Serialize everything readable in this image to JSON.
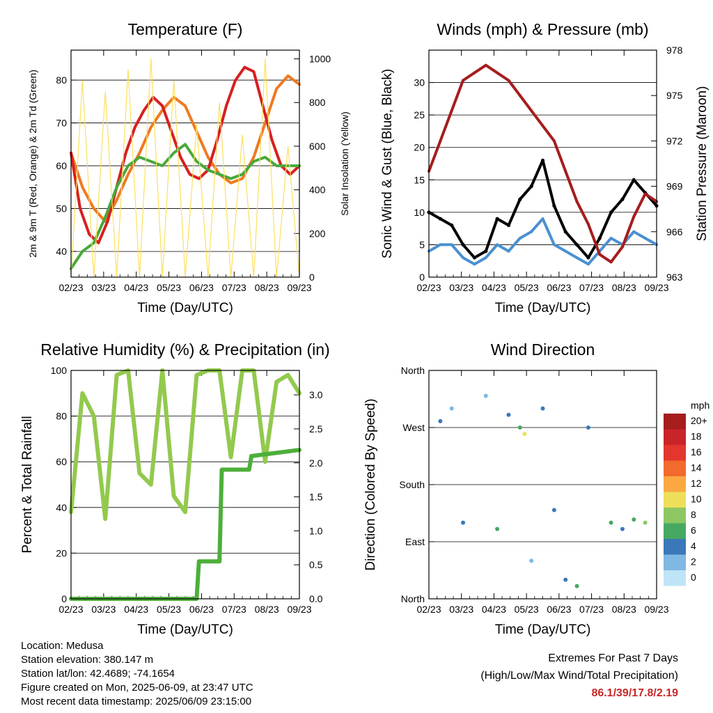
{
  "footer": {
    "location": "Location: Medusa",
    "elevation": "Station elevation: 380.147 m",
    "latlon": "Station lat/lon: 42.4689; -74.1654",
    "created": "Figure created on Mon, 2025-06-09, at 23:47 UTC",
    "recent": "Most recent data timestamp: 2025/06/09 23:15:00",
    "extremes_title": "Extremes For Past 7 Days",
    "extremes_sub": "(High/Low/Max Wind/Total Precipitation)",
    "extremes_values": "86.1/39/17.8/2.19"
  },
  "chart_data": [
    {
      "type": "line",
      "title": "Temperature (F)",
      "xlabel": "Time (Day/UTC)",
      "ylabel": "2m & 9m T (Red, Orange) & 2m Td (Green)",
      "ylabel_right": "Solar Insolation (Yellow)",
      "x_ticks": [
        "02/23",
        "03/23",
        "04/23",
        "05/23",
        "06/23",
        "07/23",
        "08/23",
        "09/23"
      ],
      "xlim": [
        0,
        7
      ],
      "ylim": [
        34,
        87
      ],
      "y_ticks": [
        40,
        50,
        60,
        70,
        80
      ],
      "ylim_right": [
        0,
        1040
      ],
      "y_ticks_right": [
        0,
        200,
        400,
        600,
        800,
        1000
      ],
      "grid": "horizontal",
      "series": [
        {
          "color": "#ee7a22",
          "axis": "left",
          "x": [
            0,
            0.05,
            0.1,
            0.15,
            0.2,
            0.25,
            0.3,
            0.35,
            0.4,
            0.45,
            0.5,
            0.55,
            0.6,
            0.65,
            0.7,
            0.75,
            0.8,
            0.85,
            0.9,
            0.95,
            1.0
          ],
          "y": [
            63,
            55,
            50,
            47,
            52,
            58,
            63,
            69,
            73,
            76,
            74,
            68,
            62,
            58,
            56,
            57,
            62,
            70,
            78,
            81,
            79
          ]
        },
        {
          "color": "#d62020",
          "axis": "left",
          "x": [
            0,
            0.04,
            0.08,
            0.12,
            0.16,
            0.2,
            0.24,
            0.28,
            0.32,
            0.36,
            0.4,
            0.44,
            0.48,
            0.52,
            0.56,
            0.6,
            0.64,
            0.68,
            0.72,
            0.76,
            0.8,
            0.84,
            0.88,
            0.92,
            0.96,
            1.0
          ],
          "y": [
            63,
            50,
            44,
            42,
            47,
            55,
            63,
            69,
            73,
            76,
            74,
            68,
            62,
            58,
            57,
            59,
            66,
            74,
            80,
            83,
            82,
            74,
            66,
            60,
            58,
            60
          ]
        },
        {
          "color": "#49a83a",
          "axis": "left",
          "x": [
            0,
            0.05,
            0.1,
            0.15,
            0.2,
            0.25,
            0.3,
            0.35,
            0.4,
            0.45,
            0.5,
            0.55,
            0.6,
            0.65,
            0.7,
            0.75,
            0.8,
            0.85,
            0.9,
            0.95,
            1.0
          ],
          "y": [
            36,
            40,
            42,
            48,
            55,
            60,
            62,
            61,
            60,
            63,
            65,
            61,
            59,
            58,
            57,
            58,
            61,
            62,
            60,
            60,
            60
          ]
        },
        {
          "color": "#fde05c",
          "axis": "right",
          "x": [
            0,
            0.05,
            0.1,
            0.15,
            0.2,
            0.25,
            0.3,
            0.35,
            0.4,
            0.45,
            0.5,
            0.55,
            0.6,
            0.65,
            0.7,
            0.75,
            0.8,
            0.85,
            0.9,
            0.95,
            1.0
          ],
          "y": [
            0,
            900,
            0,
            850,
            0,
            950,
            0,
            1000,
            0,
            900,
            0,
            700,
            0,
            800,
            0,
            650,
            0,
            1000,
            0,
            600,
            0
          ]
        }
      ]
    },
    {
      "type": "scatter",
      "title": "Winds (mph) & Pressure (mb)",
      "xlabel": "Time (Day/UTC)",
      "ylabel": "Sonic Wind & Gust (Blue, Black)",
      "ylabel_right": "Station Pressure (Maroon)",
      "x_ticks": [
        "02/23",
        "03/23",
        "04/23",
        "05/23",
        "06/23",
        "07/23",
        "08/23",
        "09/23"
      ],
      "xlim": [
        0,
        7
      ],
      "ylim": [
        0,
        35
      ],
      "y_ticks": [
        0,
        5,
        10,
        15,
        20,
        25,
        30
      ],
      "ylim_right": [
        963,
        978
      ],
      "y_ticks_right": [
        963,
        966,
        969,
        972,
        975,
        978
      ],
      "grid": "horizontal",
      "series": [
        {
          "color": "#4a90d0",
          "axis": "left",
          "x": [
            0,
            0.05,
            0.1,
            0.15,
            0.2,
            0.25,
            0.3,
            0.35,
            0.4,
            0.45,
            0.5,
            0.55,
            0.6,
            0.65,
            0.7,
            0.75,
            0.8,
            0.85,
            0.9,
            0.95,
            1.0
          ],
          "y": [
            4,
            5,
            5,
            3,
            2,
            3,
            5,
            4,
            6,
            7,
            9,
            5,
            4,
            3,
            2,
            4,
            6,
            5,
            7,
            6,
            5
          ]
        },
        {
          "color": "#000000",
          "axis": "left",
          "x": [
            0,
            0.05,
            0.1,
            0.15,
            0.2,
            0.25,
            0.3,
            0.35,
            0.4,
            0.45,
            0.5,
            0.55,
            0.6,
            0.65,
            0.7,
            0.75,
            0.8,
            0.85,
            0.9,
            0.95,
            1.0
          ],
          "y": [
            10,
            9,
            8,
            5,
            3,
            4,
            9,
            8,
            12,
            14,
            18,
            11,
            7,
            5,
            3,
            6,
            10,
            12,
            15,
            13,
            11
          ]
        },
        {
          "color": "#a51d1d",
          "axis": "right",
          "x": [
            0,
            0.05,
            0.1,
            0.15,
            0.2,
            0.25,
            0.3,
            0.35,
            0.4,
            0.45,
            0.5,
            0.55,
            0.6,
            0.65,
            0.7,
            0.75,
            0.8,
            0.85,
            0.9,
            0.95,
            1.0
          ],
          "y": [
            970,
            972,
            974,
            976,
            976.5,
            977,
            976.5,
            976,
            975,
            974,
            973,
            972,
            970,
            968,
            966.5,
            964.5,
            964,
            965,
            967,
            968.5,
            968
          ]
        }
      ]
    },
    {
      "type": "line",
      "title": "Relative Humidity (%) & Precipitation (in)",
      "xlabel": "Time (Day/UTC)",
      "ylabel": "Percent & Total Rainfall",
      "x_ticks": [
        "02/23",
        "03/23",
        "04/23",
        "05/23",
        "06/23",
        "07/23",
        "08/23",
        "09/23"
      ],
      "xlim": [
        0,
        7
      ],
      "ylim": [
        0,
        100
      ],
      "y_ticks": [
        0,
        20,
        40,
        60,
        80,
        100
      ],
      "ylim_right": [
        0,
        3.36
      ],
      "y_ticks_right": [
        "0.0",
        "0.5",
        "1.0",
        "1.5",
        "2.0",
        "2.5",
        "3.0"
      ],
      "grid": "horizontal",
      "series": [
        {
          "color": "#93c94e",
          "axis": "left",
          "x": [
            0,
            0.05,
            0.1,
            0.15,
            0.2,
            0.25,
            0.3,
            0.35,
            0.4,
            0.45,
            0.5,
            0.55,
            0.6,
            0.65,
            0.7,
            0.75,
            0.8,
            0.85,
            0.9,
            0.95,
            1.0
          ],
          "y": [
            38,
            90,
            80,
            35,
            98,
            100,
            55,
            50,
            100,
            45,
            38,
            98,
            100,
            100,
            62,
            100,
            100,
            60,
            95,
            98,
            90
          ]
        },
        {
          "color": "#4daf3a",
          "axis": "right",
          "x": [
            0,
            0.55,
            0.56,
            0.65,
            0.66,
            0.78,
            0.79,
            1.0
          ],
          "y": [
            0,
            0,
            0.55,
            0.55,
            1.9,
            1.9,
            2.1,
            2.19
          ]
        }
      ]
    },
    {
      "type": "scatter",
      "title": "Wind Direction",
      "xlabel": "Time (Day/UTC)",
      "ylabel": "Direction (Colored By Speed)",
      "x_ticks": [
        "02/23",
        "03/23",
        "04/23",
        "05/23",
        "06/23",
        "07/23",
        "08/23",
        "09/23"
      ],
      "xlim": [
        0,
        7
      ],
      "ylim": [
        0,
        360
      ],
      "y_tick_labels": [
        "North",
        "East",
        "South",
        "West",
        "North"
      ],
      "y_tick_values": [
        0,
        90,
        180,
        270,
        360
      ],
      "grid": "horizontal",
      "legend": {
        "title": "mph",
        "placement": "right",
        "labels": [
          "20+",
          "18",
          "16",
          "14",
          "12",
          "10",
          "8",
          "6",
          "4",
          "2",
          "0"
        ],
        "colors": [
          "#a51d1d",
          "#c92429",
          "#e3362e",
          "#f26a2d",
          "#fba843",
          "#eedf5a",
          "#8dc764",
          "#47a862",
          "#3a78b8",
          "#7fb8e2",
          "#bfe4f7"
        ]
      },
      "points": [
        {
          "x": 0.05,
          "y": 280,
          "speed": 4
        },
        {
          "x": 0.1,
          "y": 300,
          "speed": 2
        },
        {
          "x": 0.15,
          "y": 120,
          "speed": 4
        },
        {
          "x": 0.25,
          "y": 320,
          "speed": 2
        },
        {
          "x": 0.3,
          "y": 110,
          "speed": 6
        },
        {
          "x": 0.35,
          "y": 290,
          "speed": 4
        },
        {
          "x": 0.4,
          "y": 270,
          "speed": 6
        },
        {
          "x": 0.42,
          "y": 260,
          "speed": 10
        },
        {
          "x": 0.45,
          "y": 60,
          "speed": 2
        },
        {
          "x": 0.5,
          "y": 300,
          "speed": 4
        },
        {
          "x": 0.55,
          "y": 140,
          "speed": 4
        },
        {
          "x": 0.6,
          "y": 30,
          "speed": 4
        },
        {
          "x": 0.65,
          "y": 20,
          "speed": 6
        },
        {
          "x": 0.7,
          "y": 270,
          "speed": 4
        },
        {
          "x": 0.8,
          "y": 120,
          "speed": 6
        },
        {
          "x": 0.85,
          "y": 110,
          "speed": 4
        },
        {
          "x": 0.9,
          "y": 125,
          "speed": 6
        },
        {
          "x": 0.95,
          "y": 120,
          "speed": 8
        }
      ]
    }
  ]
}
